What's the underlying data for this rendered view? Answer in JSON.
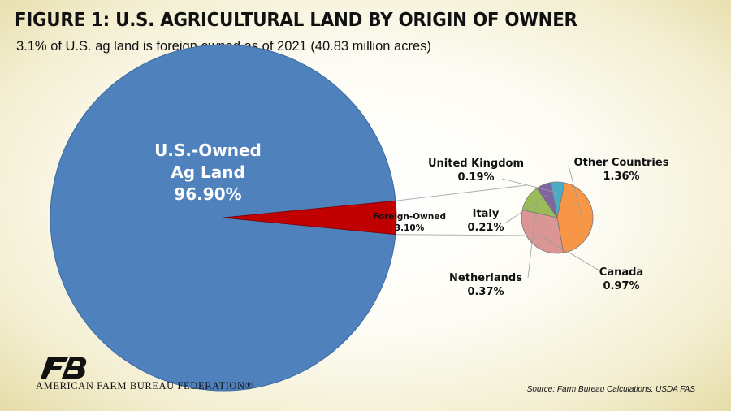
{
  "header": {
    "title": "FIGURE 1: U.S. AGRICULTURAL LAND BY ORIGIN OF OWNER",
    "subtitle": "3.1% of U.S. ag land is foreign owned as of 2021 (40.83 million acres)"
  },
  "chart_data": [
    {
      "type": "pie",
      "slices": [
        {
          "name": "U.S.-Owned Ag Land",
          "label_lines": [
            "U.S.-Owned",
            "Ag Land",
            "96.90%"
          ],
          "value": 96.9,
          "color": "#4f81bd"
        },
        {
          "name": "Foreign-Owned",
          "label_lines": [
            "Foreign-Owned",
            "3.10%"
          ],
          "value": 3.1,
          "color": "#c00000"
        }
      ]
    },
    {
      "type": "pie",
      "slices": [
        {
          "name": "Other Countries",
          "label_lines": [
            "Other Countries",
            "1.36%"
          ],
          "value": 1.36,
          "color": "#f79646"
        },
        {
          "name": "Canada",
          "label_lines": [
            "Canada",
            "0.97%"
          ],
          "value": 0.97,
          "color": "#da9694"
        },
        {
          "name": "Netherlands",
          "label_lines": [
            "Netherlands",
            "0.37%"
          ],
          "value": 0.37,
          "color": "#9bbb59"
        },
        {
          "name": "Italy",
          "label_lines": [
            "Italy",
            "0.21%"
          ],
          "value": 0.21,
          "color": "#8064a2"
        },
        {
          "name": "United Kingdom",
          "label_lines": [
            "United Kingdom",
            "0.19%"
          ],
          "value": 0.19,
          "color": "#4bacc6"
        }
      ]
    }
  ],
  "footer": {
    "organization": "AMERICAN FARM BUREAU FEDERATION®",
    "logo_icon": "farm-bureau-fb-logo-icon",
    "source": "Source: Farm Bureau Calculations, USDA FAS"
  }
}
